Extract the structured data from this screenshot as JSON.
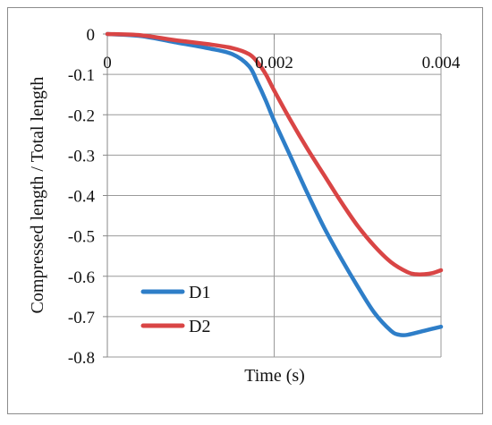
{
  "chart_data": {
    "type": "line",
    "xlabel": "Time (s)",
    "ylabel": "Compressed length / Total length",
    "xlim": [
      0,
      0.004
    ],
    "ylim": [
      -0.8,
      0
    ],
    "x_ticks": [
      "0",
      "0.002",
      "0.004"
    ],
    "x_tick_values": [
      0,
      0.002,
      0.004
    ],
    "y_ticks": [
      "0",
      "-0.1",
      "-0.2",
      "-0.3",
      "-0.4",
      "-0.5",
      "-0.6",
      "-0.7",
      "-0.8"
    ],
    "y_tick_values": [
      0,
      -0.1,
      -0.2,
      -0.3,
      -0.4,
      -0.5,
      -0.6,
      -0.7,
      -0.8
    ],
    "grid": true,
    "legend_position": "bottom-left",
    "series": [
      {
        "name": "D1",
        "color": "#2e7ec8",
        "x": [
          0,
          0.0004,
          0.0008,
          0.0012,
          0.0015,
          0.0017,
          0.0018,
          0.0019,
          0.002,
          0.0022,
          0.0024,
          0.0026,
          0.0028,
          0.003,
          0.0032,
          0.0034,
          0.0035,
          0.0036,
          0.0038,
          0.004
        ],
        "y": [
          0,
          -0.005,
          -0.02,
          -0.035,
          -0.05,
          -0.08,
          -0.12,
          -0.165,
          -0.215,
          -0.305,
          -0.395,
          -0.48,
          -0.555,
          -0.625,
          -0.69,
          -0.735,
          -0.745,
          -0.745,
          -0.735,
          -0.725
        ]
      },
      {
        "name": "D2",
        "color": "#d94545",
        "x": [
          0,
          0.0004,
          0.0008,
          0.0012,
          0.0015,
          0.0017,
          0.0018,
          0.0019,
          0.002,
          0.0022,
          0.0024,
          0.0026,
          0.0028,
          0.003,
          0.0032,
          0.0034,
          0.0036,
          0.0037,
          0.0038,
          0.0039,
          0.004
        ],
        "y": [
          0,
          -0.003,
          -0.015,
          -0.025,
          -0.035,
          -0.05,
          -0.07,
          -0.1,
          -0.14,
          -0.215,
          -0.285,
          -0.35,
          -0.415,
          -0.475,
          -0.525,
          -0.565,
          -0.59,
          -0.595,
          -0.595,
          -0.592,
          -0.585
        ]
      }
    ]
  }
}
